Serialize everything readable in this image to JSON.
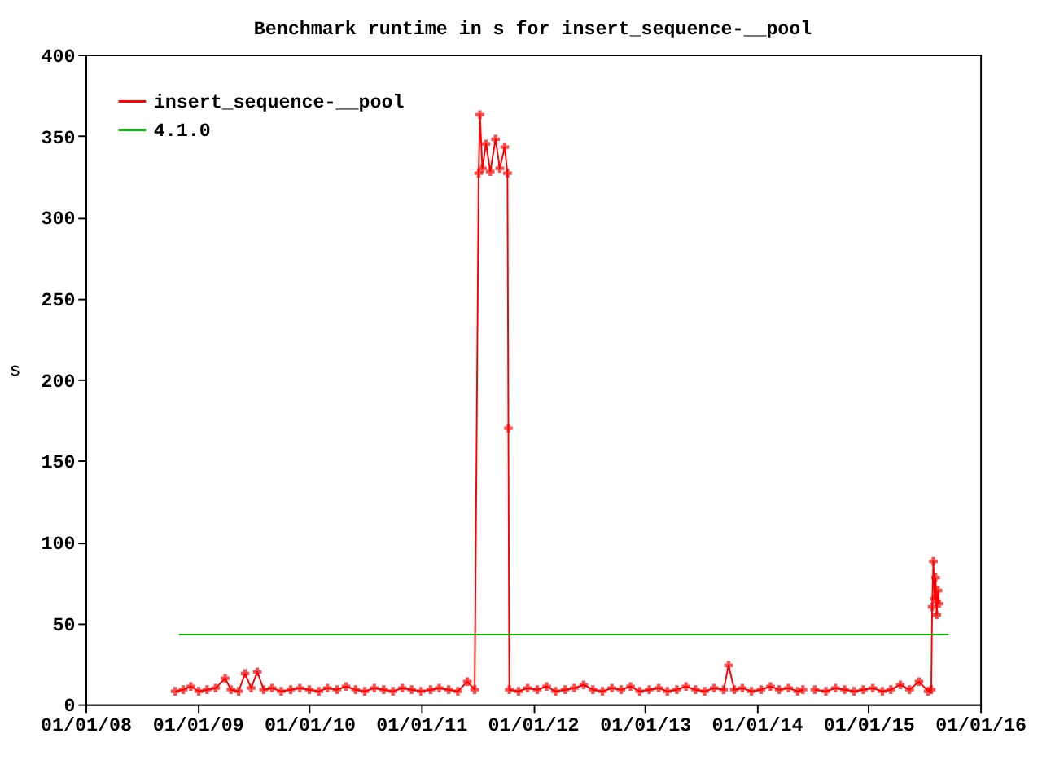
{
  "chart_data": {
    "type": "line",
    "title": "Benchmark runtime in s for insert_sequence-__pool",
    "ylabel": "s",
    "xlim": [
      "2008-01-01",
      "2016-01-01"
    ],
    "xticks": [
      {
        "value": "2008-01-01",
        "label": "01/01/08"
      },
      {
        "value": "2009-01-01",
        "label": "01/01/09"
      },
      {
        "value": "2010-01-01",
        "label": "01/01/10"
      },
      {
        "value": "2011-01-01",
        "label": "01/01/11"
      },
      {
        "value": "2012-01-01",
        "label": "01/01/12"
      },
      {
        "value": "2013-01-01",
        "label": "01/01/13"
      },
      {
        "value": "2014-01-01",
        "label": "01/01/14"
      },
      {
        "value": "2015-01-01",
        "label": "01/01/15"
      },
      {
        "value": "2016-01-01",
        "label": "01/01/16"
      }
    ],
    "ylim": [
      0,
      400
    ],
    "yticks": [
      0,
      50,
      100,
      150,
      200,
      250,
      300,
      350,
      400
    ],
    "grid": false,
    "legend": "top left",
    "series": [
      {
        "name": "insert_sequence-__pool",
        "color": "#ff0000",
        "marker": "cross",
        "x": [
          "2008-10-20",
          "2008-11-15",
          "2008-12-10",
          "2009-01-05",
          "2009-02-01",
          "2009-03-01",
          "2009-04-01",
          "2009-04-20",
          "2009-05-15",
          "2009-06-05",
          "2009-06-25",
          "2009-07-15",
          "2009-08-05",
          "2009-09-01",
          "2009-10-01",
          "2009-11-01",
          "2009-12-01",
          "2010-01-01",
          "2010-02-01",
          "2010-03-01",
          "2010-04-01",
          "2010-05-01",
          "2010-06-01",
          "2010-07-01",
          "2010-08-01",
          "2010-09-01",
          "2010-10-01",
          "2010-11-01",
          "2010-12-01",
          "2011-01-01",
          "2011-02-01",
          "2011-03-01",
          "2011-04-01",
          "2011-05-01",
          "2011-06-01",
          "2011-06-25",
          "2011-07-08",
          "2011-07-12",
          "2011-07-20",
          "2011-08-01",
          "2011-08-15",
          "2011-09-01",
          "2011-09-15",
          "2011-10-01",
          "2011-10-10",
          "2011-10-13",
          "2011-10-16",
          "2011-11-15",
          "2011-12-15",
          "2012-01-15",
          "2012-02-15",
          "2012-03-15",
          "2012-04-15",
          "2012-05-15",
          "2012-06-15",
          "2012-07-15",
          "2012-08-15",
          "2012-09-15",
          "2012-10-15",
          "2012-11-15",
          "2012-12-15",
          "2013-01-15",
          "2013-02-15",
          "2013-03-15",
          "2013-04-15",
          "2013-05-15",
          "2013-06-15",
          "2013-07-15",
          "2013-08-15",
          "2013-09-15",
          "2013-10-01",
          "2013-10-20",
          "2013-11-15",
          "2013-12-15",
          "2014-01-15",
          "2014-02-15",
          "2014-03-15",
          "2014-04-15",
          "2014-05-15",
          "2014-06-01",
          "2014-06-20",
          "2014-07-10",
          "2014-08-15",
          "2014-09-15",
          "2014-10-15",
          "2014-11-15",
          "2014-12-15",
          "2015-01-15",
          "2015-02-15",
          "2015-03-15",
          "2015-04-15",
          "2015-05-15",
          "2015-06-15",
          "2015-07-15",
          "2015-07-25",
          "2015-07-28",
          "2015-08-01",
          "2015-08-05",
          "2015-08-08",
          "2015-08-12",
          "2015-08-16",
          "2015-08-20"
        ],
        "values": [
          8,
          9,
          11,
          8,
          9,
          10,
          16,
          9,
          8,
          19,
          10,
          20,
          9,
          10,
          8,
          9,
          10,
          9,
          8,
          10,
          9,
          11,
          9,
          8,
          10,
          9,
          8,
          10,
          9,
          8,
          9,
          10,
          9,
          8,
          14,
          9,
          327,
          363,
          330,
          345,
          328,
          348,
          330,
          343,
          327,
          170,
          9,
          8,
          10,
          9,
          11,
          8,
          9,
          10,
          12,
          9,
          8,
          10,
          9,
          11,
          8,
          9,
          10,
          8,
          9,
          11,
          9,
          8,
          10,
          9,
          24,
          9,
          10,
          8,
          9,
          11,
          9,
          10,
          8,
          9,
          null,
          9,
          8,
          10,
          9,
          8,
          9,
          10,
          8,
          9,
          12,
          9,
          14,
          8,
          9,
          60,
          88,
          65,
          78,
          55,
          70,
          62
        ]
      },
      {
        "name": "4.1.0",
        "color": "#00c000",
        "marker": "none",
        "x": [
          "2008-11-01",
          "2015-09-20"
        ],
        "values": [
          43,
          43
        ]
      }
    ]
  }
}
